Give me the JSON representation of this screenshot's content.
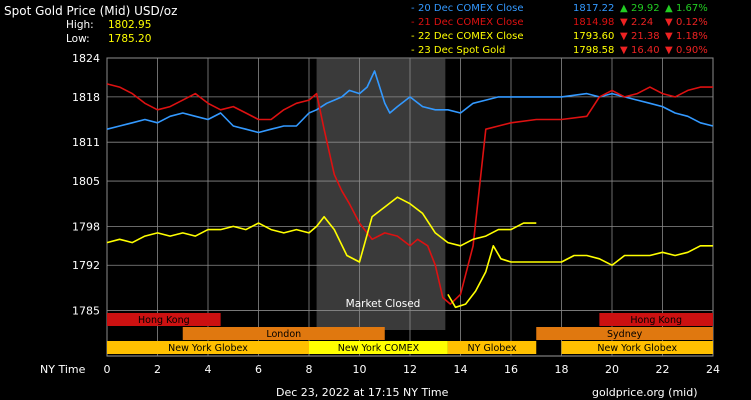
{
  "header": {
    "title": "Spot Gold Price (Mid) USD/oz",
    "high_label": "High:",
    "high_value": "1802.95",
    "low_label": "Low:",
    "low_value": "1785.20"
  },
  "legend": [
    {
      "label": "20 Dec COMEX Close",
      "price": "1817.22",
      "change": "29.92",
      "pct": "1.67%",
      "dir": "up",
      "color": "#3399ff"
    },
    {
      "label": "21 Dec COMEX Close",
      "price": "1814.98",
      "change": "2.24",
      "pct": "0.12%",
      "dir": "down",
      "color": "#dd1111"
    },
    {
      "label": "22 Dec COMEX Close",
      "price": "1793.60",
      "change": "21.38",
      "pct": "1.18%",
      "dir": "down",
      "color": "#ffff00"
    },
    {
      "label": "23 Dec Spot Gold",
      "price": "1798.58",
      "change": "16.40",
      "pct": "0.90%",
      "dir": "down",
      "color": "#ffff00"
    }
  ],
  "market_closed_label": "Market Closed",
  "x_axis_label": "NY Time",
  "footer": {
    "timestamp": "Dec 23, 2022 at 17:15 NY Time",
    "source": "goldprice.org (mid)"
  },
  "sessions": [
    {
      "name": "Hong Kong",
      "start": 0,
      "end": 4.5,
      "row": 0,
      "color": "#cc1111"
    },
    {
      "name": "Hong Kong",
      "start": 19.5,
      "end": 24,
      "row": 0,
      "color": "#cc1111"
    },
    {
      "name": "London",
      "start": 3,
      "end": 11,
      "row": 1,
      "color": "#e0780f"
    },
    {
      "name": "Sydney",
      "start": 17,
      "end": 24,
      "row": 1,
      "color": "#e0780f"
    },
    {
      "name": "New York Globex",
      "start": 0,
      "end": 8,
      "row": 2,
      "color": "#ffc000"
    },
    {
      "name": "New York COMEX",
      "start": 8,
      "end": 13.5,
      "row": 2,
      "color": "#ffff00"
    },
    {
      "name": "NY Globex",
      "start": 13.5,
      "end": 17,
      "row": 2,
      "color": "#ffc000"
    },
    {
      "name": "New York Globex",
      "start": 18,
      "end": 24,
      "row": 2,
      "color": "#ffc000"
    }
  ],
  "chart_data": {
    "type": "line",
    "xlabel": "NY Time",
    "ylabel": "",
    "xlim": [
      0,
      24
    ],
    "ylim": [
      1782,
      1824
    ],
    "x_ticks": [
      0,
      2,
      4,
      6,
      8,
      10,
      12,
      14,
      16,
      18,
      20,
      22,
      24
    ],
    "y_ticks": [
      1785,
      1792,
      1798,
      1805,
      1811,
      1818,
      1824
    ],
    "grid": true,
    "market_closed_range": [
      8.3,
      13.4
    ],
    "series": [
      {
        "name": "20 Dec COMEX Close",
        "color": "#3399ff",
        "x": [
          0,
          0.5,
          1,
          1.5,
          2,
          2.5,
          3,
          3.5,
          4,
          4.5,
          5,
          5.5,
          6,
          6.5,
          7,
          7.5,
          8,
          8.3,
          8.7,
          9,
          9.3,
          9.6,
          10,
          10.3,
          10.6,
          10.8,
          11,
          11.2,
          11.5,
          12,
          12.5,
          13,
          13.5,
          14,
          14.5,
          15,
          15.5,
          16,
          17,
          18,
          19,
          19.5,
          20,
          20.5,
          21,
          21.5,
          22,
          22.5,
          23,
          23.5,
          24
        ],
        "values": [
          1813,
          1813.5,
          1814,
          1814.5,
          1814,
          1815,
          1815.5,
          1815,
          1814.5,
          1815.5,
          1813.5,
          1813,
          1812.5,
          1813,
          1813.5,
          1813.5,
          1815.5,
          1816,
          1817,
          1817.5,
          1818,
          1819,
          1818.5,
          1819.5,
          1822,
          1819.5,
          1817,
          1815.5,
          1816.5,
          1818,
          1816.5,
          1816,
          1816,
          1815.5,
          1817,
          1817.5,
          1818,
          1818,
          1818,
          1818,
          1818.5,
          1818,
          1818.5,
          1818,
          1817.5,
          1817,
          1816.5,
          1815.5,
          1815,
          1814,
          1813.5
        ]
      },
      {
        "name": "21 Dec COMEX Close",
        "color": "#dd1111",
        "x": [
          0,
          0.5,
          1,
          1.5,
          2,
          2.5,
          3,
          3.5,
          4,
          4.5,
          5,
          5.5,
          6,
          6.5,
          7,
          7.5,
          8,
          8.3,
          8.6,
          9,
          9.3,
          9.6,
          10,
          10.5,
          11,
          11.5,
          12,
          12.3,
          12.7,
          13,
          13.3,
          13.6,
          14,
          14.5,
          15,
          15.5,
          16,
          17,
          18,
          19,
          19.5,
          20,
          20.5,
          21,
          21.5,
          22,
          22.5,
          23,
          23.5,
          24
        ],
        "values": [
          1820,
          1819.5,
          1818.5,
          1817,
          1816,
          1816.5,
          1817.5,
          1818.5,
          1817,
          1816,
          1816.5,
          1815.5,
          1814.5,
          1814.5,
          1816,
          1817,
          1817.5,
          1818.5,
          1813,
          1806,
          1803.5,
          1801.5,
          1798.5,
          1796,
          1797,
          1796.5,
          1795,
          1796,
          1795,
          1792,
          1787,
          1786,
          1787.5,
          1795,
          1813,
          1813.5,
          1814,
          1814.5,
          1814.5,
          1815,
          1818,
          1819,
          1818,
          1818.5,
          1819.5,
          1818.5,
          1818,
          1819,
          1819.5,
          1819.5
        ]
      },
      {
        "name": "22 Dec COMEX Close",
        "color": "#ffff00",
        "x": [
          0,
          0.5,
          1,
          1.5,
          2,
          2.5,
          3,
          3.5,
          4,
          4.5,
          5,
          5.5,
          6,
          6.5,
          7,
          7.5,
          8,
          8.3,
          8.6,
          9,
          9.5,
          10,
          10.5,
          11,
          11.5,
          12,
          12.5,
          13,
          13.5,
          14,
          14.5,
          15,
          15.5,
          16,
          16.5,
          17
        ],
        "values": [
          1795.5,
          1796,
          1795.5,
          1796.5,
          1797,
          1796.5,
          1797,
          1796.5,
          1797.5,
          1797.5,
          1798,
          1797.5,
          1798.5,
          1797.5,
          1797,
          1797.5,
          1797,
          1798,
          1799.5,
          1797.5,
          1793.5,
          1792.5,
          1799.5,
          1801,
          1802.5,
          1801.5,
          1800,
          1797,
          1795.5,
          1795,
          1796,
          1796.5,
          1797.5,
          1797.5,
          1798.5,
          1798.5
        ]
      },
      {
        "name": "23 Dec Spot Gold",
        "color": "#ffff00",
        "x": [
          13.5,
          13.8,
          14.2,
          14.6,
          15,
          15.3,
          15.6,
          16,
          16.5,
          17,
          17.5,
          18,
          18.5,
          19,
          19.5,
          20,
          20.5,
          21,
          21.5,
          22,
          22.5,
          23,
          23.5,
          24
        ],
        "values": [
          1787.5,
          1785.5,
          1786,
          1788,
          1791,
          1795,
          1793,
          1792.5,
          1792.5,
          1792.5,
          1792.5,
          1792.5,
          1793.5,
          1793.5,
          1793,
          1792,
          1793.5,
          1793.5,
          1793.5,
          1794,
          1793.5,
          1794,
          1795,
          1795
        ]
      }
    ]
  }
}
